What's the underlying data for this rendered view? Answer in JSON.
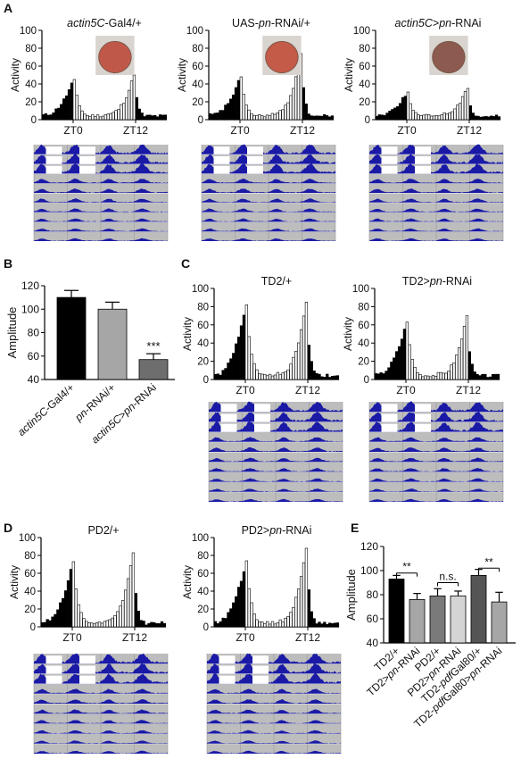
{
  "panels": {
    "A": {
      "label": "A",
      "activity": [
        {
          "title": "actin5C-Gal4/+",
          "ylabel": "Activity",
          "yticks": [
            "0",
            "20",
            "40",
            "60",
            "80",
            "100"
          ],
          "xticks": [
            "ZT0",
            "ZT12"
          ],
          "ylim": [
            0,
            100
          ],
          "peaks": [
            45,
            50
          ]
        },
        {
          "title": "UAS-pn-RNAi/+",
          "ylabel": "Activity",
          "yticks": [
            "0",
            "20",
            "40",
            "60",
            "80",
            "100"
          ],
          "xticks": [
            "ZT0",
            "ZT12"
          ],
          "ylim": [
            0,
            100
          ],
          "peaks": [
            48,
            74
          ]
        },
        {
          "title": "actin5C>pn-RNAi",
          "ylabel": "Activity",
          "yticks": [
            "0",
            "20",
            "40",
            "60",
            "80",
            "100"
          ],
          "xticks": [
            "ZT0",
            "ZT12"
          ],
          "ylim": [
            0,
            100
          ],
          "peaks": [
            31,
            35
          ]
        }
      ]
    },
    "B": {
      "label": "B",
      "ylabel": "Amplitude",
      "yticks": [
        "40",
        "60",
        "80",
        "100",
        "120"
      ],
      "significance": "***",
      "bars": [
        {
          "name": "actin5C-Gal4/+",
          "value": 110,
          "err": 6,
          "color": "#000000"
        },
        {
          "name": "pn-RNAi/+",
          "value": 100,
          "err": 6,
          "color": "#a6a6a6"
        },
        {
          "name": "actin5C>pn-RNAi",
          "value": 57,
          "err": 5,
          "color": "#6e6e6e"
        }
      ]
    },
    "C": {
      "label": "C",
      "activity": [
        {
          "title": "TD2/+",
          "ylabel": "Activity",
          "yticks": [
            "0",
            "20",
            "40",
            "60",
            "80",
            "100"
          ],
          "xticks": [
            "ZT0",
            "ZT12"
          ],
          "ylim": [
            0,
            100
          ],
          "peaks": [
            82,
            85
          ]
        },
        {
          "title": "TD2>pn-RNAi",
          "ylabel": "Activity",
          "yticks": [
            "0",
            "20",
            "40",
            "60",
            "80",
            "100"
          ],
          "xticks": [
            "ZT0",
            "ZT12"
          ],
          "ylim": [
            0,
            100
          ],
          "peaks": [
            63,
            70
          ]
        }
      ]
    },
    "D": {
      "label": "D",
      "activity": [
        {
          "title": "PD2/+",
          "ylabel": "Activity",
          "yticks": [
            "0",
            "20",
            "40",
            "60",
            "80",
            "100"
          ],
          "xticks": [
            "ZT0",
            "ZT12"
          ],
          "ylim": [
            0,
            100
          ],
          "peaks": [
            73,
            83
          ]
        },
        {
          "title": "PD2>pn-RNAi",
          "ylabel": "Activity",
          "yticks": [
            "0",
            "20",
            "40",
            "60",
            "80",
            "100"
          ],
          "xticks": [
            "ZT0",
            "ZT12"
          ],
          "ylim": [
            0,
            100
          ],
          "peaks": [
            74,
            88
          ]
        }
      ]
    },
    "E": {
      "label": "E",
      "ylabel": "Amplitude",
      "yticks": [
        "40",
        "60",
        "80",
        "100",
        "120"
      ],
      "comparisons": [
        "**",
        "n.s.",
        "**"
      ],
      "bars": [
        {
          "name": "TD2/+",
          "value": 93,
          "err": 3,
          "color": "#000000"
        },
        {
          "name": "TD2>pn-RNAi",
          "value": 76,
          "err": 5,
          "color": "#a6a6a6"
        },
        {
          "name": "PD2/+",
          "value": 79,
          "err": 6,
          "color": "#7a7a7a"
        },
        {
          "name": "PD2>pn-RNAi",
          "value": 79,
          "err": 4,
          "color": "#d4d4d4"
        },
        {
          "name": "TD2-pdfGal80/+",
          "value": 96,
          "err": 5,
          "color": "#555555"
        },
        {
          "name": "TD2-pdfGal80>pn-RNAi",
          "value": 74,
          "err": 8,
          "color": "#a6a6a6"
        }
      ]
    }
  },
  "colors": {
    "actogram_bg": "#bdbdbd",
    "actogram_fill": "#1a1aa6",
    "dark_bar": "#000000",
    "light_bar": "#ffffff"
  },
  "chart_data": [
    {
      "type": "bar",
      "title": "",
      "ylabel": "Amplitude",
      "ylim": [
        40,
        120
      ],
      "categories": [
        "actin5C-Gal4/+",
        "pn-RNAi/+",
        "actin5C>pn-RNAi"
      ],
      "values": [
        110,
        100,
        57
      ],
      "errors": [
        6,
        6,
        5
      ]
    },
    {
      "type": "bar",
      "title": "",
      "ylabel": "Amplitude",
      "ylim": [
        40,
        120
      ],
      "categories": [
        "TD2/+",
        "TD2>pn-RNAi",
        "PD2/+",
        "PD2>pn-RNAi",
        "TD2-pdfGal80/+",
        "TD2-pdfGal80>pn-RNAi"
      ],
      "values": [
        93,
        76,
        79,
        79,
        96,
        74
      ],
      "errors": [
        3,
        5,
        6,
        4,
        5,
        8
      ]
    }
  ]
}
